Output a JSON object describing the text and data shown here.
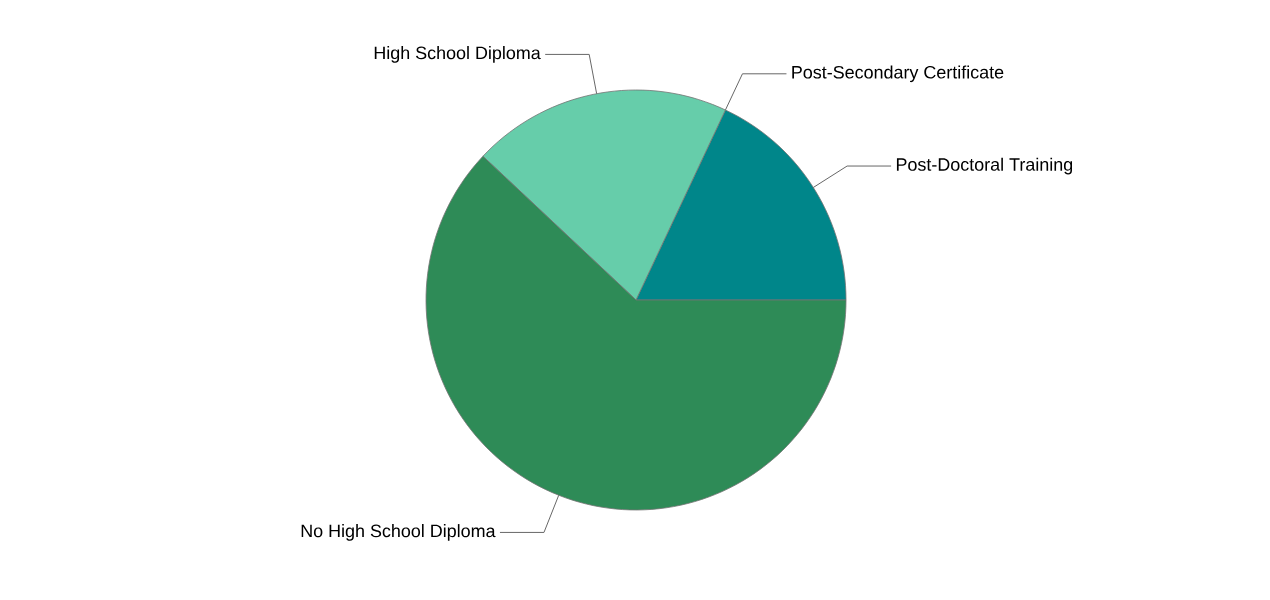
{
  "chart_data": {
    "type": "pie",
    "categories": [
      "Post-Doctoral Training",
      "Post-Secondary Certificate",
      "High School Diploma",
      "No High School Diploma"
    ],
    "values": [
      18,
      0,
      20,
      62
    ],
    "colors": [
      "#00868a",
      "#00868a",
      "#66cdaa",
      "#2e8b57"
    ]
  }
}
